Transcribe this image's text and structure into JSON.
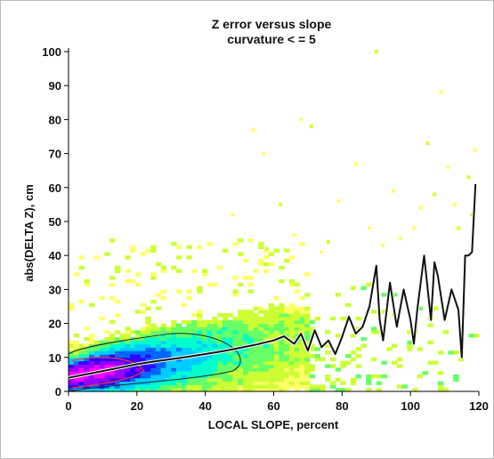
{
  "chart_data": {
    "type": "heatmap",
    "title": "Z error versus slope",
    "subtitle": "curvature < = 5",
    "xlabel": "LOCAL SLOPE, percent",
    "ylabel": "abs(DELTA Z), cm",
    "xlim": [
      0,
      120
    ],
    "ylim": [
      0,
      100
    ],
    "x_ticks": [
      0,
      20,
      40,
      60,
      80,
      100,
      120
    ],
    "y_ticks": [
      0,
      10,
      20,
      30,
      40,
      50,
      60,
      70,
      80,
      90,
      100
    ],
    "density_colors": [
      "#ffff66",
      "#ccff33",
      "#66ff66",
      "#00ffcc",
      "#00ccff",
      "#0066ff",
      "#3300ff",
      "#9900ff",
      "#ff00ff"
    ],
    "contour_colors": [
      "#222222",
      "#ff3333"
    ],
    "mean_line": {
      "x": [
        0,
        5,
        10,
        15,
        20,
        25,
        30,
        35,
        40,
        45,
        50,
        55,
        60,
        63,
        66,
        68,
        70,
        72,
        74,
        76,
        78,
        80,
        82,
        84,
        86,
        88,
        90,
        91,
        92,
        94,
        96,
        98,
        100,
        101,
        102,
        104,
        106,
        107,
        108,
        110,
        112,
        114,
        115,
        116,
        117,
        118,
        119
      ],
      "y": [
        4,
        5,
        6,
        7,
        8,
        8.8,
        9.5,
        10.2,
        11,
        11.8,
        12.8,
        13.8,
        15,
        16.2,
        14,
        17,
        12,
        18,
        13,
        15,
        11,
        16,
        22,
        17,
        19,
        25,
        37,
        21,
        15,
        32,
        19,
        30,
        21,
        14,
        24,
        40,
        21,
        38,
        34,
        21,
        30,
        24,
        10,
        40,
        40,
        41,
        61
      ]
    },
    "outliers": [
      {
        "x": 90,
        "y": 100
      },
      {
        "x": 109,
        "y": 88
      },
      {
        "x": 68,
        "y": 80
      },
      {
        "x": 71,
        "y": 78
      },
      {
        "x": 54,
        "y": 77
      },
      {
        "x": 57,
        "y": 70
      },
      {
        "x": 105,
        "y": 73
      },
      {
        "x": 111,
        "y": 66
      },
      {
        "x": 119,
        "y": 71
      },
      {
        "x": 117,
        "y": 63
      },
      {
        "x": 84,
        "y": 67
      },
      {
        "x": 48,
        "y": 52
      },
      {
        "x": 62,
        "y": 55
      },
      {
        "x": 95,
        "y": 59
      },
      {
        "x": 101,
        "y": 48
      },
      {
        "x": 107,
        "y": 58
      },
      {
        "x": 113,
        "y": 55
      },
      {
        "x": 88,
        "y": 48
      },
      {
        "x": 76,
        "y": 44
      },
      {
        "x": 97,
        "y": 45
      },
      {
        "x": 66,
        "y": 46
      },
      {
        "x": 118,
        "y": 52
      },
      {
        "x": 103,
        "y": 54
      },
      {
        "x": 79,
        "y": 56
      },
      {
        "x": 114,
        "y": 48
      },
      {
        "x": 92,
        "y": 43
      },
      {
        "x": 74,
        "y": 41
      },
      {
        "x": 58,
        "y": 42
      }
    ]
  }
}
